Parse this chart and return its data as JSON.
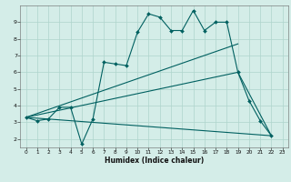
{
  "xlabel": "Humidex (Indice chaleur)",
  "bg_color": "#d4ede8",
  "line_color": "#006060",
  "grid_color": "#aed4cc",
  "xlim": [
    -0.5,
    23.5
  ],
  "ylim": [
    1.5,
    10.0
  ],
  "xticks": [
    0,
    1,
    2,
    3,
    4,
    5,
    6,
    7,
    8,
    9,
    10,
    11,
    12,
    13,
    14,
    15,
    16,
    17,
    18,
    19,
    20,
    21,
    22,
    23
  ],
  "yticks": [
    2,
    3,
    4,
    5,
    6,
    7,
    8,
    9
  ],
  "series1_x": [
    0,
    1,
    2,
    3,
    4,
    5,
    6,
    7,
    8,
    9,
    10,
    11,
    12,
    13,
    14,
    15,
    16,
    17,
    18,
    19,
    20,
    21,
    22
  ],
  "series1_y": [
    3.3,
    3.1,
    3.2,
    3.9,
    3.9,
    1.7,
    3.2,
    6.6,
    6.5,
    6.4,
    8.4,
    9.5,
    9.3,
    8.5,
    8.5,
    9.7,
    8.5,
    9.0,
    9.0,
    6.0,
    4.3,
    3.1,
    2.2
  ],
  "series2_x": [
    0,
    22
  ],
  "series2_y": [
    3.3,
    2.2
  ],
  "series3_x": [
    0,
    19
  ],
  "series3_y": [
    3.3,
    7.7
  ],
  "series4_x": [
    0,
    19,
    22
  ],
  "series4_y": [
    3.3,
    6.0,
    2.2
  ]
}
